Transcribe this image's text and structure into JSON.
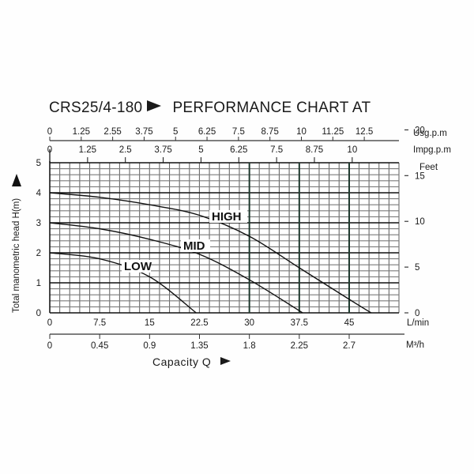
{
  "title": {
    "model": "CRS25/4-180",
    "text": "PERFORMANCE CHART AT"
  },
  "axes": {
    "usgpm": {
      "unit": "Usg.p.m",
      "ticks": [
        "0",
        "1.25",
        "2.55",
        "3.75",
        "5",
        "6.25",
        "7.5",
        "8.75",
        "10",
        "11.25",
        "12.5"
      ]
    },
    "impgpm": {
      "unit": "Impg.p.m",
      "ticks": [
        "0",
        "1.25",
        "2.5",
        "3.75",
        "5",
        "6.25",
        "7.5",
        "8.75",
        "10"
      ]
    },
    "feet": {
      "unit": "Feet",
      "ticks": [
        "0",
        "5",
        "10",
        "15",
        "20"
      ]
    },
    "head_m": {
      "label": "Total manometric head H(m)",
      "ticks": [
        "0",
        "1",
        "2",
        "3",
        "4",
        "5"
      ]
    },
    "lmin": {
      "unit": "L/min",
      "ticks": [
        "0",
        "7.5",
        "15",
        "22.5",
        "30",
        "37.5",
        "45"
      ]
    },
    "m3h": {
      "unit": "M³/h",
      "ticks": [
        "0",
        "0.45",
        "0.9",
        "1.35",
        "1.8",
        "2.25",
        "2.7"
      ]
    }
  },
  "capacity_label": "Capacity  Q",
  "chart_data": {
    "type": "line",
    "title": "CRS25/4-180 PERFORMANCE CHART AT",
    "xlabel": "Capacity Q (L/min)",
    "ylabel": "Total manometric head H(m)",
    "xlim": [
      0,
      52.5
    ],
    "ylim": [
      0,
      5
    ],
    "grid": true,
    "secondary_axes": {
      "top_usgpm_ticks": [
        0,
        1.25,
        2.55,
        3.75,
        5,
        6.25,
        7.5,
        8.75,
        10,
        11.25,
        12.5
      ],
      "top_impgpm_ticks": [
        0,
        1.25,
        2.5,
        3.75,
        5,
        6.25,
        7.5,
        8.75,
        10
      ],
      "right_feet_ticks": [
        0,
        5,
        10,
        15,
        20
      ],
      "bottom_m3h_ticks": [
        0,
        0.45,
        0.9,
        1.35,
        1.8,
        2.25,
        2.7
      ]
    },
    "series": [
      {
        "name": "HIGH",
        "x": [
          0,
          7.5,
          15,
          22.5,
          30,
          37.5,
          45,
          48.3
        ],
        "y": [
          4.0,
          3.85,
          3.6,
          3.25,
          2.55,
          1.5,
          0.45,
          0
        ]
      },
      {
        "name": "MID",
        "x": [
          0,
          7.5,
          15,
          22.5,
          30,
          38
        ],
        "y": [
          3.0,
          2.8,
          2.45,
          1.95,
          1.1,
          0
        ]
      },
      {
        "name": "LOW",
        "x": [
          0,
          7.5,
          15,
          22
        ],
        "y": [
          2.0,
          1.8,
          1.2,
          0
        ]
      }
    ]
  }
}
